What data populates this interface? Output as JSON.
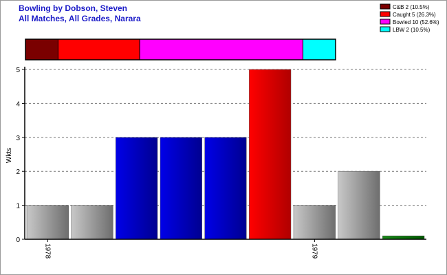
{
  "chart_data": {
    "type": "bar",
    "title": "Bowling by Dobson, Steven",
    "subtitle": "All Matches, All Grades, Narara",
    "ylabel": "Wkts",
    "ylim": [
      0,
      5
    ],
    "yticks": [
      0,
      1,
      2,
      3,
      4,
      5
    ],
    "grid": true,
    "legend_position": "top-right",
    "values": [
      1,
      1,
      3,
      3,
      3,
      5,
      1,
      2,
      0.1
    ],
    "bar_colors": [
      "grey",
      "grey",
      "blue",
      "blue",
      "blue",
      "red",
      "grey",
      "grey",
      "green"
    ],
    "x_tick_labels": [
      {
        "label": "1978",
        "bar_index": 0
      },
      {
        "label": "1979",
        "bar_index": 6
      }
    ],
    "dismissals": [
      {
        "name": "C&B",
        "count": 2,
        "percent": 10.5,
        "legend": "C&B 2 (10.5%)",
        "color": "#7a0000"
      },
      {
        "name": "Caught",
        "count": 5,
        "percent": 26.3,
        "legend": "Caught 5 (26.3%)",
        "color": "#ff0000"
      },
      {
        "name": "Bowled",
        "count": 10,
        "percent": 52.6,
        "legend": "Bowled 10 (52.6%)",
        "color": "#ff00ff"
      },
      {
        "name": "LBW",
        "count": 2,
        "percent": 10.5,
        "legend": "LBW 2 (10.5%)",
        "color": "#00ffff"
      }
    ]
  }
}
